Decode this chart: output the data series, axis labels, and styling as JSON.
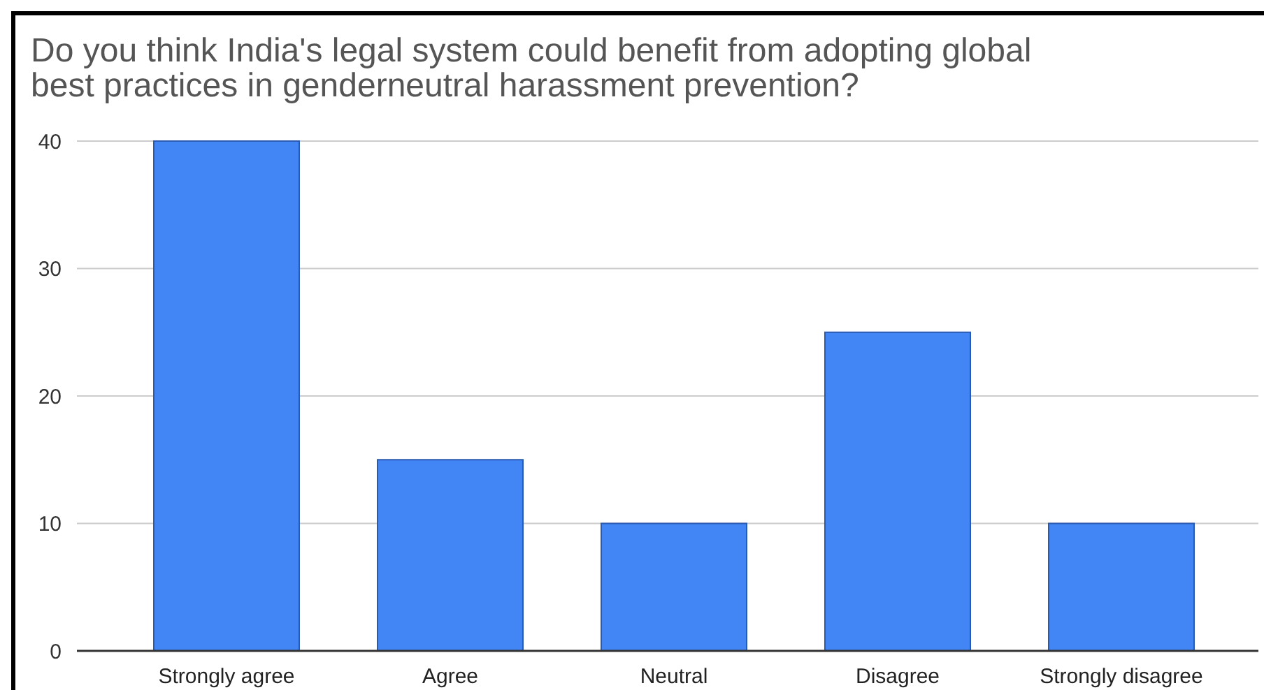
{
  "chart_data": {
    "type": "bar",
    "title": "Do you think India's legal system could benefit from adopting global best practices in genderneutral harassment prevention?",
    "categories": [
      "Strongly agree",
      "Agree",
      "Neutral",
      "Disagree",
      "Strongly disagree"
    ],
    "values": [
      40,
      15,
      10,
      25,
      10
    ],
    "color": "#4285f4",
    "ylim": [
      0,
      40
    ],
    "yticks": [
      0,
      10,
      20,
      30,
      40
    ],
    "grid": "y"
  }
}
